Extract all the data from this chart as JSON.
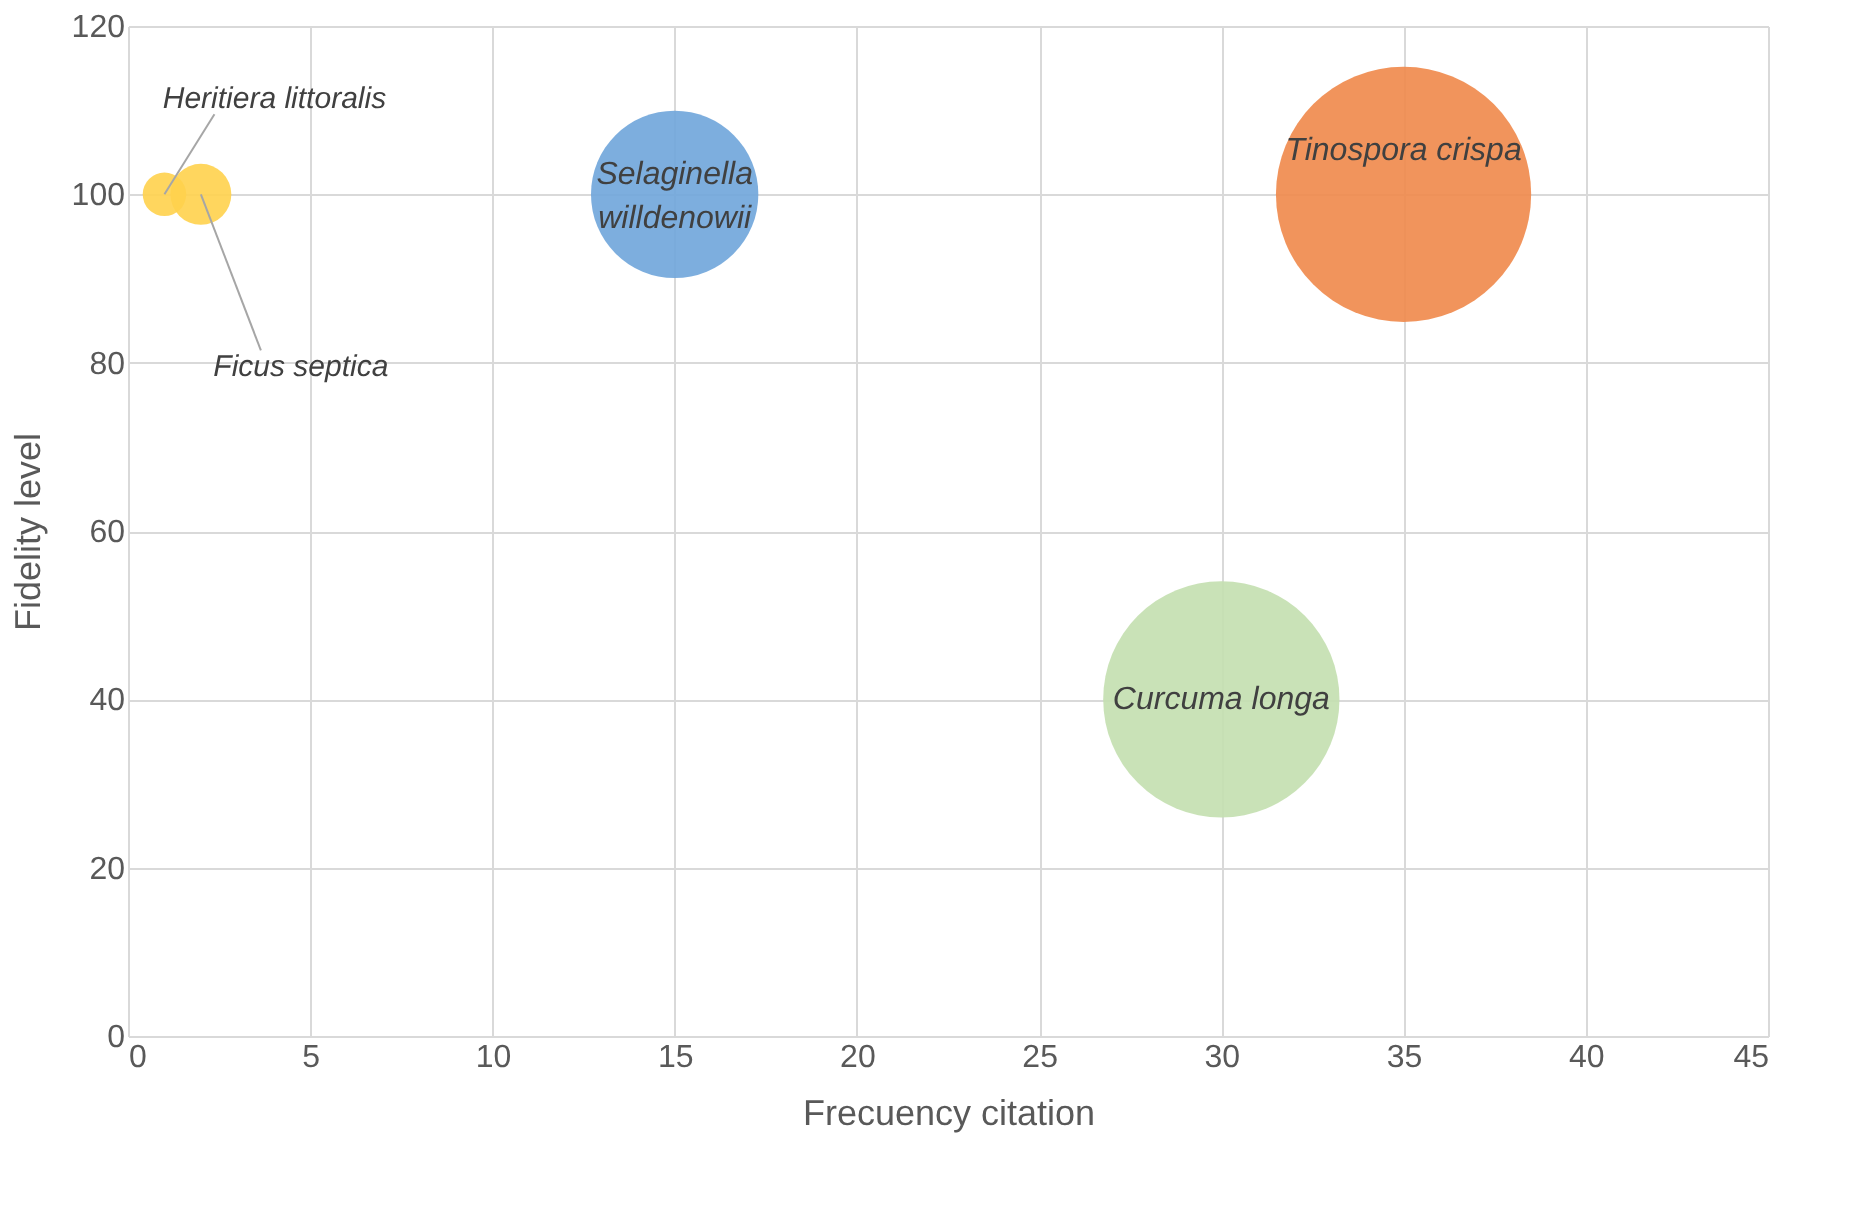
{
  "chart_data": {
    "type": "bubble",
    "xlabel": "Frecuency citation",
    "ylabel": "Fidelity level",
    "series": [
      {
        "name": "Heritiera littoralis",
        "color": "#ffd24d",
        "x": [
          1
        ],
        "values": [
          100
        ],
        "sizes": [
          0.029
        ]
      },
      {
        "name": "Ficus septica",
        "color": "#ffd24d",
        "x": [
          2
        ],
        "values": [
          100
        ],
        "sizes": [
          0.057
        ]
      },
      {
        "name": "Selaginella willdenowii",
        "color": "#6fa5da",
        "x": [
          15
        ],
        "values": [
          100
        ],
        "sizes": [
          0.43
        ]
      },
      {
        "name": "Tinospora crispa",
        "color": "#f0884a",
        "x": [
          35
        ],
        "values": [
          100
        ],
        "sizes": [
          1
        ]
      },
      {
        "name": "Curcuma longa",
        "color": "#c3dfaf",
        "x": [
          30
        ],
        "values": [
          40
        ],
        "sizes": [
          0.857
        ]
      }
    ],
    "xlim": [
      0,
      45
    ],
    "xticks": [
      0,
      5,
      10,
      15,
      20,
      25,
      30,
      35,
      40,
      45
    ],
    "ylim": [
      0,
      120
    ],
    "yticks": [
      0,
      20,
      40,
      60,
      80,
      100,
      120
    ],
    "grid": true
  }
}
